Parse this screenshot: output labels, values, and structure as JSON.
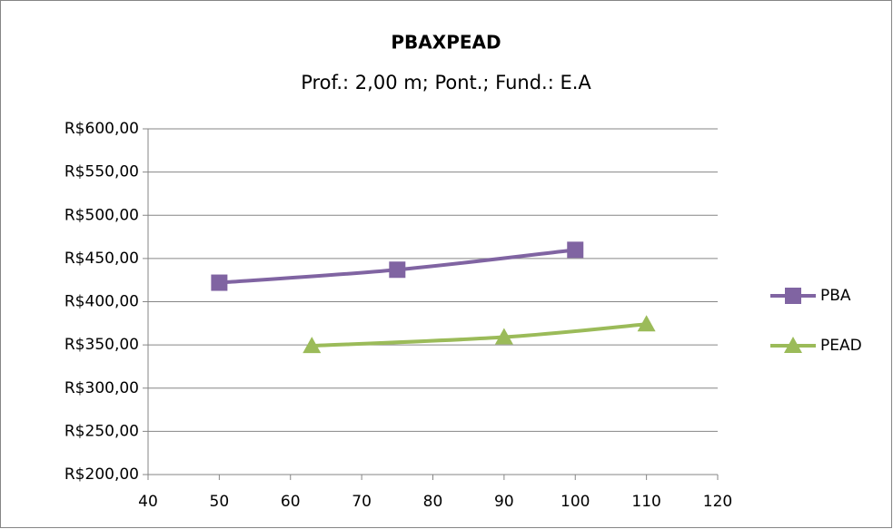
{
  "chart_data": {
    "type": "line",
    "title": "PBAXPEAD",
    "subtitle": "Prof.: 2,00 m; Pont.; Fund.: E.A",
    "series": [
      {
        "name": "PBA",
        "color": "#8064a2",
        "marker": "square",
        "x": [
          50,
          75,
          100
        ],
        "values": [
          422,
          437,
          460
        ]
      },
      {
        "name": "PEAD",
        "color": "#9bbb59",
        "marker": "triangle",
        "x": [
          63,
          90,
          110
        ],
        "values": [
          349,
          359,
          374
        ]
      }
    ],
    "xlim": [
      40,
      120
    ],
    "xticks": [
      40,
      50,
      60,
      70,
      80,
      90,
      100,
      110,
      120
    ],
    "ylim": [
      200,
      600
    ],
    "yticks": [
      {
        "value": 200,
        "label": "R$200,00"
      },
      {
        "value": 250,
        "label": "R$250,00"
      },
      {
        "value": 300,
        "label": "R$300,00"
      },
      {
        "value": 350,
        "label": "R$350,00"
      },
      {
        "value": 400,
        "label": "R$400,00"
      },
      {
        "value": 450,
        "label": "R$450,00"
      },
      {
        "value": 500,
        "label": "R$500,00"
      },
      {
        "value": 550,
        "label": "R$550,00"
      },
      {
        "value": 600,
        "label": "R$600,00"
      }
    ],
    "grid": true,
    "smooth": true,
    "legend": "right"
  }
}
